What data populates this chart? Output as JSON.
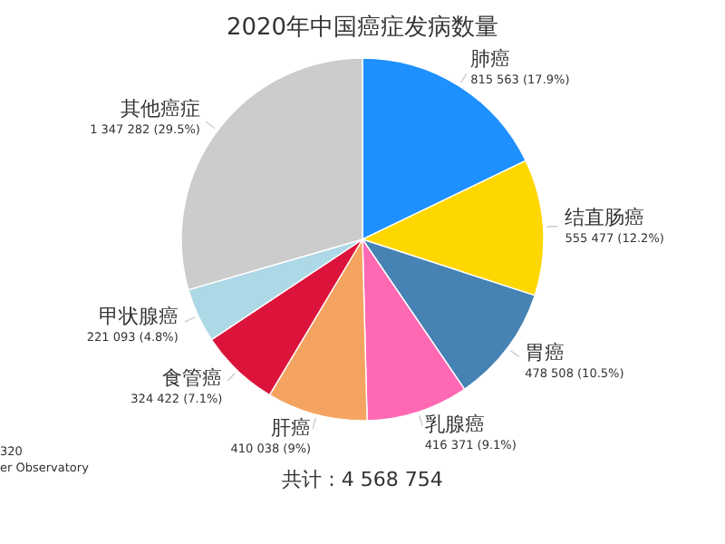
{
  "chart_data": {
    "type": "pie",
    "title": "2020年中国癌症发病数量",
    "categories": [
      "肺癌",
      "结直肠癌",
      "胃癌",
      "乳腺癌",
      "肝癌",
      "食管癌",
      "甲状腺癌",
      "其他癌症"
    ],
    "values": [
      815563,
      555477,
      478508,
      416371,
      410038,
      324422,
      221093,
      1347282
    ],
    "value_labels": [
      "815 563 (17.9%)",
      "555 477 (12.2%)",
      "478 508 (10.5%)",
      "416 371 (9.1%)",
      "410 038 (9%)",
      "324 422 (7.1%)",
      "221 093 (4.8%)",
      "1 347 282 (29.5%)"
    ],
    "colors": [
      "#1e90ff",
      "#ffd700",
      "#4682b4",
      "#ff69b4",
      "#f4a460",
      "#dc143c",
      "#add8e6",
      "#cccccc"
    ],
    "annotations": [
      "共计 : 4 568 754",
      "320",
      "er Observatory"
    ]
  }
}
